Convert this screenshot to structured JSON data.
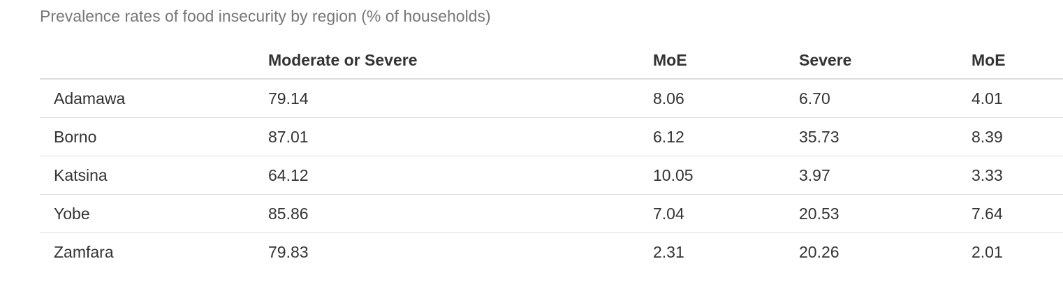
{
  "caption": "Prevalence rates of food insecurity by region (% of households)",
  "table": {
    "headers": [
      "",
      "Moderate or Severe",
      "MoE",
      "Severe",
      "MoE"
    ],
    "rows": [
      [
        "Adamawa",
        "79.14",
        "8.06",
        "6.70",
        "4.01"
      ],
      [
        "Borno",
        "87.01",
        "6.12",
        "35.73",
        "8.39"
      ],
      [
        "Katsina",
        "64.12",
        "10.05",
        "3.97",
        "3.33"
      ],
      [
        "Yobe",
        "85.86",
        "7.04",
        "20.53",
        "7.64"
      ],
      [
        "Zamfara",
        "79.83",
        "2.31",
        "20.26",
        "2.01"
      ]
    ]
  }
}
